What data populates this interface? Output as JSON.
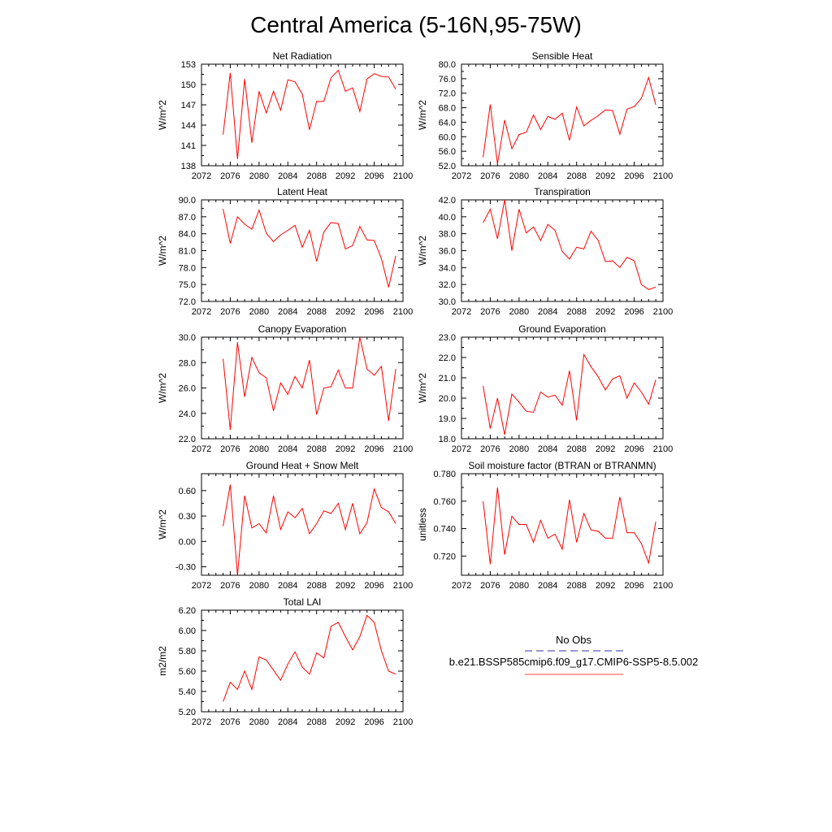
{
  "figure": {
    "title": "Central America (5-16N,95-75W)"
  },
  "legend": {
    "entries": [
      {
        "label": "No Obs",
        "color": "#3333aa",
        "style": "dashed"
      },
      {
        "label": "b.e21.BSSP585cmip6.f09_g17.CMIP6-SSP5-8.5.002",
        "color": "#ff4444",
        "style": "solid"
      }
    ]
  },
  "chart_data": [
    {
      "type": "line",
      "title": "Net Radiation",
      "ylabel": "W/m^2",
      "xlim": [
        2072,
        2100
      ],
      "ylim": [
        138,
        153
      ],
      "xticks": [
        2072,
        2076,
        2080,
        2084,
        2088,
        2092,
        2096,
        2100
      ],
      "xtick_labels": [
        "2072",
        "2076",
        "2080",
        "2084",
        "2088",
        "2092",
        "2096",
        "2100"
      ],
      "yticks": [
        138,
        141,
        144,
        147,
        150,
        153
      ],
      "ytick_labels": [
        "138",
        "141",
        "144",
        "147",
        "150",
        "153"
      ],
      "series": [
        {
          "color": "#ff0000",
          "x": [
            2075,
            2076,
            2077,
            2078,
            2079,
            2080,
            2081,
            2082,
            2083,
            2084,
            2085,
            2086,
            2087,
            2088,
            2089,
            2090,
            2091,
            2092,
            2093,
            2094,
            2095,
            2096,
            2097,
            2098,
            2099
          ],
          "y": [
            142.6,
            151.7,
            139.0,
            150.8,
            141.4,
            149.0,
            145.8,
            149.0,
            146.2,
            150.7,
            150.4,
            148.6,
            143.3,
            147.5,
            147.5,
            151.0,
            152.1,
            149.0,
            149.5,
            146.0,
            150.8,
            151.6,
            151.2,
            151.1,
            149.3
          ]
        }
      ]
    },
    {
      "type": "line",
      "title": "Sensible Heat",
      "ylabel": "W/m^2",
      "xlim": [
        2072,
        2100
      ],
      "ylim": [
        52,
        80
      ],
      "xticks": [
        2072,
        2076,
        2080,
        2084,
        2088,
        2092,
        2096,
        2100
      ],
      "xtick_labels": [
        "2072",
        "2076",
        "2080",
        "2084",
        "2088",
        "2092",
        "2096",
        "2100"
      ],
      "yticks": [
        52,
        56,
        60,
        64,
        68,
        72,
        76,
        80
      ],
      "ytick_labels": [
        "52.0",
        "56.0",
        "60.0",
        "64.0",
        "68.0",
        "72.0",
        "76.0",
        "80.0"
      ],
      "series": [
        {
          "color": "#ff0000",
          "x": [
            2075,
            2076,
            2077,
            2078,
            2079,
            2080,
            2081,
            2082,
            2083,
            2084,
            2085,
            2086,
            2087,
            2088,
            2089,
            2090,
            2091,
            2092,
            2093,
            2094,
            2095,
            2096,
            2097,
            2098,
            2099
          ],
          "y": [
            54.3,
            68.9,
            52.5,
            64.6,
            56.7,
            60.6,
            61.2,
            66.0,
            62.0,
            65.6,
            64.8,
            66.5,
            59.0,
            68.2,
            63.0,
            64.5,
            65.8,
            67.4,
            67.2,
            60.7,
            67.6,
            68.3,
            70.6,
            76.3,
            68.8
          ]
        }
      ]
    },
    {
      "type": "line",
      "title": "Latent Heat",
      "ylabel": "W/m^2",
      "xlim": [
        2072,
        2100
      ],
      "ylim": [
        72,
        90
      ],
      "xticks": [
        2072,
        2076,
        2080,
        2084,
        2088,
        2092,
        2096,
        2100
      ],
      "xtick_labels": [
        "2072",
        "2076",
        "2080",
        "2084",
        "2088",
        "2092",
        "2096",
        "2100"
      ],
      "yticks": [
        72,
        75,
        78,
        81,
        84,
        87,
        90
      ],
      "ytick_labels": [
        "72.0",
        "75.0",
        "78.0",
        "81.0",
        "84.0",
        "87.0",
        "90.0"
      ],
      "series": [
        {
          "color": "#ff0000",
          "x": [
            2075,
            2076,
            2077,
            2078,
            2079,
            2080,
            2081,
            2082,
            2083,
            2084,
            2085,
            2086,
            2087,
            2088,
            2089,
            2090,
            2091,
            2092,
            2093,
            2094,
            2095,
            2096,
            2097,
            2098,
            2099
          ],
          "y": [
            88.4,
            82.3,
            87.0,
            85.7,
            84.8,
            88.2,
            84.1,
            82.6,
            83.8,
            84.6,
            85.5,
            81.6,
            84.6,
            79.1,
            84.3,
            86.0,
            85.8,
            81.3,
            81.9,
            85.3,
            82.9,
            82.8,
            79.6,
            74.5,
            80.1
          ]
        }
      ]
    },
    {
      "type": "line",
      "title": "Transpiration",
      "ylabel": "W/m^2",
      "xlim": [
        2072,
        2100
      ],
      "ylim": [
        30,
        42
      ],
      "xticks": [
        2072,
        2076,
        2080,
        2084,
        2088,
        2092,
        2096,
        2100
      ],
      "xtick_labels": [
        "2072",
        "2076",
        "2080",
        "2084",
        "2088",
        "2092",
        "2096",
        "2100"
      ],
      "yticks": [
        30,
        32,
        34,
        36,
        38,
        40,
        42
      ],
      "ytick_labels": [
        "30.0",
        "32.0",
        "34.0",
        "36.0",
        "38.0",
        "40.0",
        "42.0"
      ],
      "series": [
        {
          "color": "#ff0000",
          "x": [
            2075,
            2076,
            2077,
            2078,
            2079,
            2080,
            2081,
            2082,
            2083,
            2084,
            2085,
            2086,
            2087,
            2088,
            2089,
            2090,
            2091,
            2092,
            2093,
            2094,
            2095,
            2096,
            2097,
            2098,
            2099
          ],
          "y": [
            39.3,
            40.9,
            37.4,
            42.0,
            36.0,
            40.9,
            38.1,
            38.8,
            37.2,
            39.1,
            38.4,
            35.9,
            35.0,
            36.4,
            36.2,
            38.3,
            37.2,
            34.7,
            34.8,
            34.0,
            35.2,
            34.8,
            32.0,
            31.4,
            31.7
          ]
        }
      ]
    },
    {
      "type": "line",
      "title": "Canopy Evaporation",
      "ylabel": "W/m^2",
      "xlim": [
        2072,
        2100
      ],
      "ylim": [
        22,
        30
      ],
      "xticks": [
        2072,
        2076,
        2080,
        2084,
        2088,
        2092,
        2096,
        2100
      ],
      "xtick_labels": [
        "2072",
        "2076",
        "2080",
        "2084",
        "2088",
        "2092",
        "2096",
        "2100"
      ],
      "yticks": [
        22,
        24,
        26,
        28,
        30
      ],
      "ytick_labels": [
        "22.0",
        "24.0",
        "26.0",
        "28.0",
        "30.0"
      ],
      "series": [
        {
          "color": "#ff0000",
          "x": [
            2075,
            2076,
            2077,
            2078,
            2079,
            2080,
            2081,
            2082,
            2083,
            2084,
            2085,
            2086,
            2087,
            2088,
            2089,
            2090,
            2091,
            2092,
            2093,
            2094,
            2095,
            2096,
            2097,
            2098,
            2099
          ],
          "y": [
            28.3,
            22.7,
            29.6,
            25.3,
            28.4,
            27.2,
            26.8,
            24.2,
            26.4,
            25.5,
            26.9,
            26.0,
            28.2,
            23.9,
            26.0,
            26.1,
            27.4,
            26.0,
            26.0,
            30.0,
            27.5,
            27.0,
            27.7,
            23.4,
            27.5
          ]
        }
      ]
    },
    {
      "type": "line",
      "title": "Ground Evaporation",
      "ylabel": "W/m^2",
      "xlim": [
        2072,
        2100
      ],
      "ylim": [
        18,
        23
      ],
      "xticks": [
        2072,
        2076,
        2080,
        2084,
        2088,
        2092,
        2096,
        2100
      ],
      "xtick_labels": [
        "2072",
        "2076",
        "2080",
        "2084",
        "2088",
        "2092",
        "2096",
        "2100"
      ],
      "yticks": [
        18,
        19,
        20,
        21,
        22,
        23
      ],
      "ytick_labels": [
        "18.0",
        "19.0",
        "20.0",
        "21.0",
        "22.0",
        "23.0"
      ],
      "series": [
        {
          "color": "#ff0000",
          "x": [
            2075,
            2076,
            2077,
            2078,
            2079,
            2080,
            2081,
            2082,
            2083,
            2084,
            2085,
            2086,
            2087,
            2088,
            2089,
            2090,
            2091,
            2092,
            2093,
            2094,
            2095,
            2096,
            2097,
            2098,
            2099
          ],
          "y": [
            20.6,
            18.5,
            20.0,
            18.2,
            20.2,
            19.8,
            19.35,
            19.3,
            20.3,
            20.05,
            20.15,
            19.65,
            21.35,
            18.9,
            22.15,
            21.55,
            21.05,
            20.4,
            20.95,
            21.1,
            20.0,
            20.75,
            20.3,
            19.7,
            20.9
          ]
        }
      ]
    },
    {
      "type": "line",
      "title": "Ground Heat + Snow Melt",
      "ylabel": "W/m^2",
      "xlim": [
        2072,
        2100
      ],
      "ylim": [
        -0.4,
        0.8
      ],
      "xticks": [
        2072,
        2076,
        2080,
        2084,
        2088,
        2092,
        2096,
        2100
      ],
      "xtick_labels": [
        "2072",
        "2076",
        "2080",
        "2084",
        "2088",
        "2092",
        "2096",
        "2100"
      ],
      "yticks": [
        -0.3,
        0.0,
        0.3,
        0.6
      ],
      "ytick_labels": [
        "-0.30",
        "0.00",
        "0.30",
        "0.60"
      ],
      "series": [
        {
          "color": "#ff0000",
          "x": [
            2075,
            2076,
            2077,
            2078,
            2079,
            2080,
            2081,
            2082,
            2083,
            2084,
            2085,
            2086,
            2087,
            2088,
            2089,
            2090,
            2091,
            2092,
            2093,
            2094,
            2095,
            2096,
            2097,
            2098,
            2099
          ],
          "y": [
            0.18,
            0.67,
            -0.4,
            0.54,
            0.16,
            0.21,
            0.1,
            0.54,
            0.14,
            0.35,
            0.28,
            0.39,
            0.09,
            0.21,
            0.36,
            0.33,
            0.45,
            0.14,
            0.45,
            0.09,
            0.22,
            0.62,
            0.4,
            0.35,
            0.21
          ]
        }
      ]
    },
    {
      "type": "line",
      "title": "Soil moisture factor (BTRAN or BTRANMN)",
      "ylabel": "unitless",
      "xlim": [
        2072,
        2100
      ],
      "ylim": [
        0.706,
        0.78
      ],
      "xticks": [
        2072,
        2076,
        2080,
        2084,
        2088,
        2092,
        2096,
        2100
      ],
      "xtick_labels": [
        "2072",
        "2076",
        "2080",
        "2084",
        "2088",
        "2092",
        "2096",
        "2100"
      ],
      "yticks": [
        0.72,
        0.74,
        0.76,
        0.78
      ],
      "ytick_labels": [
        "0.720",
        "0.740",
        "0.760",
        "0.780"
      ],
      "series": [
        {
          "color": "#ff0000",
          "x": [
            2075,
            2076,
            2077,
            2078,
            2079,
            2080,
            2081,
            2082,
            2083,
            2084,
            2085,
            2086,
            2087,
            2088,
            2089,
            2090,
            2091,
            2092,
            2093,
            2094,
            2095,
            2096,
            2097,
            2098,
            2099
          ],
          "y": [
            0.76,
            0.714,
            0.77,
            0.721,
            0.749,
            0.743,
            0.743,
            0.73,
            0.746,
            0.733,
            0.736,
            0.725,
            0.761,
            0.73,
            0.751,
            0.739,
            0.738,
            0.733,
            0.733,
            0.763,
            0.737,
            0.737,
            0.729,
            0.715,
            0.745
          ]
        }
      ]
    },
    {
      "type": "line",
      "title": "Total LAI",
      "ylabel": "m2/m2",
      "xlim": [
        2072,
        2100
      ],
      "ylim": [
        5.2,
        6.2
      ],
      "xticks": [
        2072,
        2076,
        2080,
        2084,
        2088,
        2092,
        2096,
        2100
      ],
      "xtick_labels": [
        "2072",
        "2076",
        "2080",
        "2084",
        "2088",
        "2092",
        "2096",
        "2100"
      ],
      "yticks": [
        5.2,
        5.4,
        5.6,
        5.8,
        6.0,
        6.2
      ],
      "ytick_labels": [
        "5.20",
        "5.40",
        "5.60",
        "5.80",
        "6.00",
        "6.20"
      ],
      "series": [
        {
          "color": "#ff0000",
          "x": [
            2075,
            2076,
            2077,
            2078,
            2079,
            2080,
            2081,
            2082,
            2083,
            2084,
            2085,
            2086,
            2087,
            2088,
            2089,
            2090,
            2091,
            2092,
            2093,
            2094,
            2095,
            2096,
            2097,
            2098,
            2099
          ],
          "y": [
            5.3,
            5.49,
            5.42,
            5.6,
            5.42,
            5.74,
            5.71,
            5.61,
            5.51,
            5.67,
            5.79,
            5.64,
            5.57,
            5.78,
            5.73,
            6.04,
            6.08,
            5.94,
            5.81,
            5.94,
            6.15,
            6.08,
            5.8,
            5.6,
            5.57
          ]
        }
      ]
    }
  ]
}
